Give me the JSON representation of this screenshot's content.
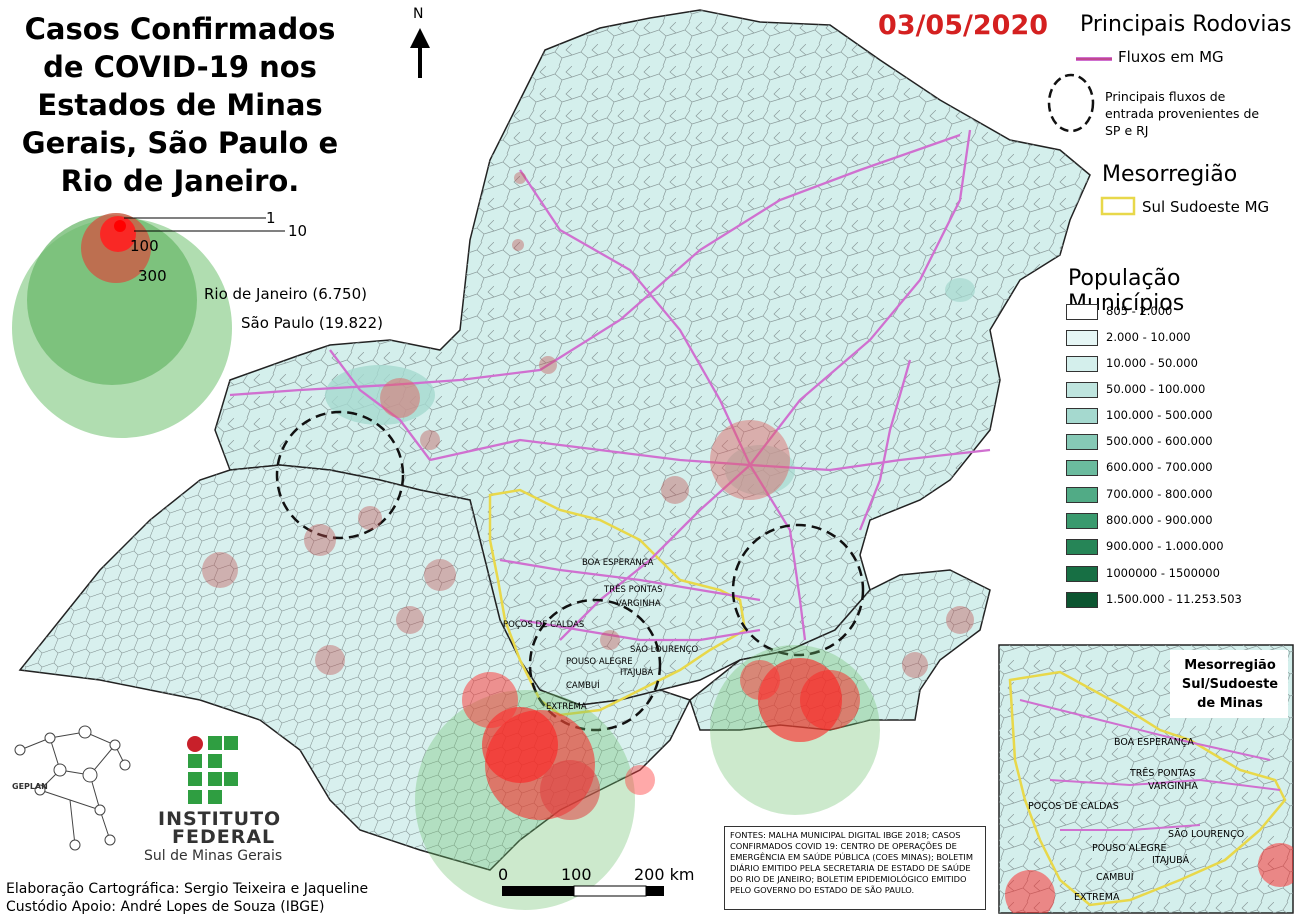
{
  "title": "Casos  Confirmados de COVID-19 nos Estados de Minas Gerais, São Paulo e Rio de Janeiro.",
  "date": "03/05/2020",
  "north_arrow": "N",
  "legend": {
    "highways_title": "Principais Rodovias",
    "highways_item": "Fluxos em MG",
    "entry_flows": "Principais fluxos de entrada provenientes de SP e RJ",
    "mesoregion_title": "Mesorregião",
    "mesoregion_item": "Sul Sudoeste MG",
    "population_title": "População Municípios",
    "population_classes": [
      {
        "label": "805 - 2.000",
        "color": "#ffffff"
      },
      {
        "label": "2.000 - 10.000",
        "color": "#e6f6f5"
      },
      {
        "label": "10.000 - 50.000",
        "color": "#d4efec"
      },
      {
        "label": "50.000 - 100.000",
        "color": "#bfe5df"
      },
      {
        "label": "100.000 - 500.000",
        "color": "#a5d9cf"
      },
      {
        "label": "500.000 - 600.000",
        "color": "#86c9b6"
      },
      {
        "label": "600.000 - 700.000",
        "color": "#6bbb9e"
      },
      {
        "label": "700.000 - 800.000",
        "color": "#51ab86"
      },
      {
        "label": "800.000 - 900.000",
        "color": "#3a9a6e"
      },
      {
        "label": "900.000 - 1.000.000",
        "color": "#268557"
      },
      {
        "label": "1000000 - 1500000",
        "color": "#176f44"
      },
      {
        "label": "1.500.000 - 11.253.503",
        "color": "#0c5530"
      }
    ]
  },
  "cases_legend": {
    "values": [
      "1",
      "10",
      "100",
      "300"
    ],
    "rio": "Rio de Janeiro (6.750)",
    "sp": "São Paulo (19.822)"
  },
  "cities": [
    "BOA ESPERANÇA",
    "TRÊS PONTAS",
    "VARGINHA",
    "POÇOS DE CALDAS",
    "SÃO LOURENÇO",
    "POUSO ALEGRE",
    "ITAJUBÁ",
    "CAMBUÍ",
    "EXTREMA"
  ],
  "inset_title": "Mesorregião Sul/Sudoeste de Minas",
  "scale": {
    "labels": [
      "0",
      "100",
      "200 km"
    ]
  },
  "sources": "FONTES: MALHA MUNICIPAL DIGITAL IBGE 2018; CASOS CONFIRMADOS COVID 19: CENTRO DE OPERAÇÕES DE EMERGÊNCIA EM SAÚDE PÚBLICA (COES MINAS); BOLETIM DIÁRIO EMITIDO PELA SECRETARIA DE ESTADO DE SAÚDE DO RIO DE JANEIRO; BOLETIM EPIDEMIOLÓGICO EMITIDO PELO GOVERNO DO ESTADO DE SÃO PAULO.",
  "credits": {
    "line1": "Elaboração Cartográfica: Sergio Teixeira e Jaqueline",
    "line2": "Custódio   Apoio: André Lopes de Souza (IBGE)"
  },
  "logos": {
    "geplan": "GEPLAN",
    "if_line1": "INSTITUTO",
    "if_line2": "FEDERAL",
    "if_line3": "Sul de Minas Gerais"
  },
  "colors": {
    "date": "#d42020",
    "highway": "#d070d0",
    "mesoregion": "#e8d84a",
    "cases": "#ff2020",
    "capital_cases": "#6cbf6c"
  }
}
